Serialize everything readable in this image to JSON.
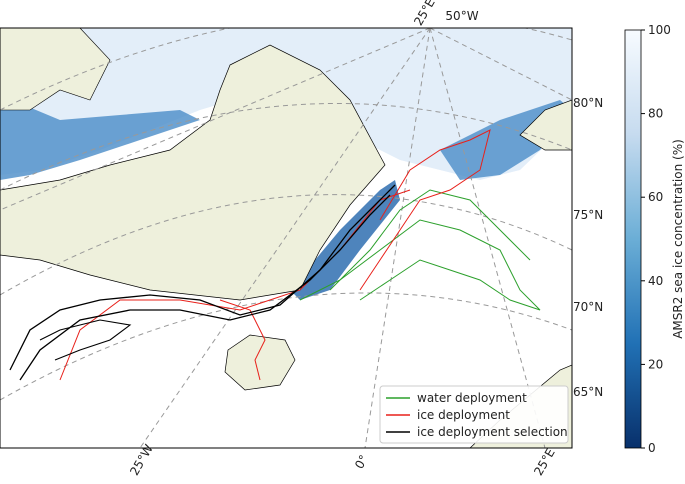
{
  "map": {
    "lon_labels": [
      "25°E",
      "50°W",
      "25°W",
      "0°",
      "25°E"
    ],
    "lat_labels": [
      "80°N",
      "75°N",
      "70°N",
      "65°N"
    ]
  },
  "colorbar": {
    "label": "AMSR2 sea ice concentration (%)",
    "range": [
      0,
      100
    ],
    "ticks": [
      0,
      20,
      40,
      60,
      80,
      100
    ]
  },
  "legend": [
    {
      "label": "water deployment",
      "color": "#2ca02c"
    },
    {
      "label": "ice deployment",
      "color": "#e8201a"
    },
    {
      "label": "ice deployment selection",
      "color": "#000000"
    }
  ]
}
